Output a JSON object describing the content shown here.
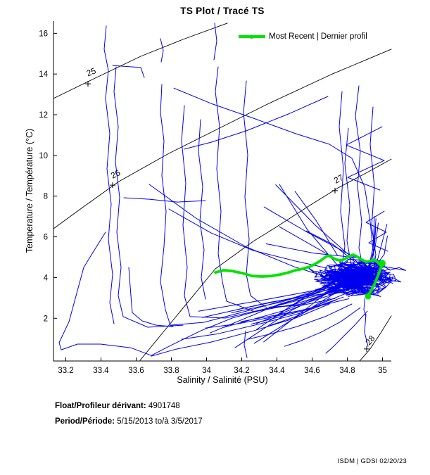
{
  "title": "TS Plot / Tracé TS",
  "legend": {
    "label": "Most Recent | Dernier profil"
  },
  "footer": {
    "float_label": "Float/Profileur dérivant:",
    "float_value": "4901748",
    "period_label": "Period/Période:",
    "period_value": "5/15/2013  to/à  3/5/2017"
  },
  "credit": "ISDM | GDSI 02/20/23",
  "chart_data": {
    "type": "line",
    "title": "TS Plot / Tracé TS",
    "xlabel": "Salinity / Salinité (PSU)",
    "ylabel": "Temperature / Température (°C)",
    "xlim": [
      33.13,
      35.05
    ],
    "ylim": [
      -0.1,
      16.6
    ],
    "xtick_values": [
      33.2,
      33.4,
      33.6,
      33.8,
      34,
      34.2,
      34.4,
      34.6,
      34.8,
      35
    ],
    "xtick_labels": [
      "33.2",
      "33.4",
      "33.6",
      "33.8",
      "34",
      "34.2",
      "34.4",
      "34.6",
      "34.8",
      "35"
    ],
    "ytick_values": [
      2,
      4,
      6,
      8,
      10,
      12,
      14,
      16
    ],
    "ytick_labels": [
      "2",
      "4",
      "6",
      "8",
      "10",
      "12",
      "14",
      "16"
    ],
    "grid": false,
    "legend_position": "top-right",
    "colors": {
      "profiles": "#0000EE",
      "most_recent": "#00E400",
      "contours": "#000000",
      "axis": "#000000"
    },
    "density_contours": [
      {
        "label": "25",
        "rotation": -22,
        "label_pos": [
          33.35,
          13.97
        ],
        "plus": [
          33.326,
          13.52
        ],
        "points": [
          [
            33.13,
            12.8
          ],
          [
            33.358,
            13.76
          ],
          [
            33.626,
            14.87
          ],
          [
            33.866,
            15.7
          ],
          [
            34.118,
            16.5
          ]
        ]
      },
      {
        "label": "26",
        "rotation": -27,
        "label_pos": [
          33.49,
          8.96
        ],
        "plus": [
          33.466,
          8.54
        ],
        "points": [
          [
            33.13,
            6.4
          ],
          [
            33.306,
            7.51
          ],
          [
            33.502,
            8.72
          ],
          [
            33.786,
            10.1
          ],
          [
            34.066,
            11.31
          ],
          [
            34.346,
            12.52
          ],
          [
            34.706,
            13.97
          ],
          [
            35.05,
            15.22
          ]
        ]
      },
      {
        "label": "27",
        "rotation": -28,
        "label_pos": [
          34.758,
          8.72
        ],
        "plus": [
          34.73,
          8.27
        ],
        "points": [
          [
            33.622,
            -0.07
          ],
          [
            33.786,
            1.66
          ],
          [
            34.05,
            4.43
          ],
          [
            34.266,
            5.78
          ],
          [
            34.394,
            6.47
          ],
          [
            34.586,
            7.54
          ],
          [
            34.746,
            8.4
          ],
          [
            34.906,
            9.13
          ],
          [
            35.05,
            9.82
          ]
        ]
      },
      {
        "label": "28",
        "rotation": -50,
        "label_pos": [
          34.942,
          0.83
        ],
        "plus": [
          34.91,
          0.49
        ],
        "points": [
          [
            34.87,
            -0.1
          ],
          [
            34.926,
            0.45
          ],
          [
            34.99,
            1.28
          ],
          [
            35.05,
            2.12
          ]
        ]
      }
    ],
    "most_recent_profile": [
      [
        34.05,
        4.25
      ],
      [
        34.098,
        4.36
      ],
      [
        34.146,
        4.32
      ],
      [
        34.202,
        4.22
      ],
      [
        34.258,
        4.08
      ],
      [
        34.314,
        4.05
      ],
      [
        34.37,
        4.08
      ],
      [
        34.418,
        4.15
      ],
      [
        34.466,
        4.25
      ],
      [
        34.506,
        4.36
      ],
      [
        34.546,
        4.43
      ],
      [
        34.586,
        4.53
      ],
      [
        34.618,
        4.67
      ],
      [
        34.65,
        4.84
      ],
      [
        34.678,
        5.02
      ],
      [
        34.694,
        5.08
      ],
      [
        34.714,
        4.98
      ],
      [
        34.738,
        4.88
      ],
      [
        34.762,
        4.84
      ],
      [
        34.786,
        4.91
      ],
      [
        34.81,
        5.05
      ],
      [
        34.834,
        5.12
      ],
      [
        34.858,
        5.02
      ],
      [
        34.882,
        4.88
      ],
      [
        34.906,
        4.77
      ],
      [
        34.93,
        4.81
      ],
      [
        34.95,
        4.88
      ],
      [
        34.97,
        4.77
      ],
      [
        34.986,
        4.63
      ],
      [
        34.998,
        4.7
      ],
      [
        34.99,
        4.46
      ],
      [
        34.978,
        4.18
      ],
      [
        34.966,
        3.91
      ],
      [
        34.954,
        3.67
      ],
      [
        34.938,
        3.39
      ],
      [
        34.922,
        3.18
      ],
      [
        34.918,
        3.08
      ]
    ],
    "most_recent_markers": [
      [
        34.998,
        4.7,
        5
      ],
      [
        34.918,
        3.08,
        4.5
      ]
    ],
    "profiles": [
      [
        [
          33.43,
          16.36
        ],
        [
          33.418,
          15.22
        ],
        [
          33.442,
          14.18
        ],
        [
          33.426,
          12.8
        ],
        [
          33.45,
          11.07
        ],
        [
          33.434,
          9.34
        ],
        [
          33.458,
          7.61
        ],
        [
          33.442,
          5.88
        ],
        [
          33.466,
          4.15
        ],
        [
          33.45,
          2.77
        ],
        [
          33.474,
          1.73
        ]
      ],
      [
        [
          33.486,
          14.35
        ],
        [
          33.474,
          13.14
        ],
        [
          33.498,
          11.41
        ],
        [
          33.482,
          9.68
        ],
        [
          33.506,
          7.95
        ],
        [
          33.49,
          6.23
        ],
        [
          33.514,
          4.5
        ],
        [
          33.498,
          3.11
        ],
        [
          33.526,
          2.08
        ],
        [
          33.666,
          1.56
        ],
        [
          33.866,
          1.66
        ]
      ],
      [
        [
          33.426,
          6.23
        ],
        [
          33.358,
          5.29
        ],
        [
          33.302,
          4.5
        ],
        [
          33.218,
          1.83
        ],
        [
          33.162,
          0.8
        ],
        [
          33.174,
          0.45
        ],
        [
          33.266,
          0.73
        ],
        [
          33.398,
          0.73
        ],
        [
          33.57,
          0.55
        ],
        [
          33.686,
          0.17
        ],
        [
          33.786,
          0.62
        ],
        [
          33.966,
          1.38
        ],
        [
          34.146,
          2.01
        ],
        [
          34.346,
          2.49
        ],
        [
          34.546,
          2.94
        ],
        [
          34.706,
          3.28
        ]
      ],
      [
        [
          33.746,
          13.49
        ],
        [
          33.738,
          12.1
        ],
        [
          33.758,
          10.72
        ],
        [
          33.746,
          9.0
        ],
        [
          33.77,
          7.26
        ],
        [
          33.758,
          5.53
        ],
        [
          33.738,
          3.8
        ],
        [
          33.766,
          2.42
        ],
        [
          33.794,
          1.66
        ],
        [
          33.986,
          1.8
        ],
        [
          34.226,
          2.35
        ],
        [
          34.506,
          3.04
        ],
        [
          34.698,
          3.6
        ]
      ],
      [
        [
          33.874,
          12.45
        ],
        [
          33.858,
          10.72
        ],
        [
          33.882,
          8.65
        ],
        [
          33.866,
          6.57
        ],
        [
          33.89,
          4.5
        ],
        [
          33.874,
          3.11
        ],
        [
          33.906,
          2.08
        ],
        [
          34.106,
          2.01
        ],
        [
          34.346,
          2.49
        ],
        [
          34.586,
          3.11
        ],
        [
          34.754,
          3.6
        ]
      ],
      [
        [
          34.066,
          14.35
        ],
        [
          34.05,
          13.14
        ],
        [
          34.074,
          11.41
        ],
        [
          34.058,
          9.34
        ],
        [
          34.082,
          7.26
        ],
        [
          34.066,
          5.19
        ],
        [
          34.09,
          3.8
        ],
        [
          34.114,
          2.84
        ],
        [
          34.274,
          2.32
        ],
        [
          34.506,
          2.7
        ],
        [
          34.726,
          3.32
        ]
      ],
      [
        [
          34.226,
          13.66
        ],
        [
          34.21,
          12.1
        ],
        [
          34.234,
          10.03
        ],
        [
          34.218,
          7.95
        ],
        [
          34.242,
          5.88
        ],
        [
          34.226,
          4.15
        ],
        [
          34.25,
          3.11
        ],
        [
          34.346,
          2.49
        ],
        [
          34.546,
          2.7
        ],
        [
          34.746,
          3.25
        ]
      ],
      [
        [
          33.966,
          11.76
        ],
        [
          33.954,
          10.2
        ],
        [
          33.978,
          8.47
        ],
        [
          33.962,
          6.74
        ],
        [
          33.986,
          5.36
        ],
        [
          33.97,
          3.98
        ],
        [
          33.994,
          2.94
        ]
      ],
      [
        [
          33.738,
          15.74
        ],
        [
          33.754,
          15.15
        ],
        [
          33.742,
          14.59
        ]
      ],
      [
        [
          34.046,
          16.5
        ],
        [
          34.058,
          15.63
        ],
        [
          34.042,
          14.7
        ]
      ],
      [
        [
          33.814,
          13.31
        ],
        [
          34.026,
          12.55
        ],
        [
          34.266,
          11.83
        ],
        [
          34.506,
          11.07
        ],
        [
          34.698,
          10.55
        ],
        [
          34.826,
          9.86
        ],
        [
          34.898,
          8.47
        ],
        [
          34.93,
          6.74
        ],
        [
          34.946,
          5.36
        ]
      ],
      [
        [
          34.69,
          12.9
        ],
        [
          34.466,
          12.04
        ],
        [
          34.226,
          11.21
        ],
        [
          34.026,
          10.65
        ],
        [
          33.874,
          10.31
        ]
      ],
      [
        [
          34.866,
          13.42
        ],
        [
          34.846,
          11.93
        ],
        [
          34.874,
          10.2
        ],
        [
          34.858,
          8.47
        ],
        [
          34.882,
          6.74
        ],
        [
          34.866,
          5.46
        ],
        [
          34.89,
          4.43
        ]
      ],
      [
        [
          34.946,
          12.38
        ],
        [
          34.93,
          10.55
        ],
        [
          34.954,
          8.47
        ],
        [
          34.938,
          6.5
        ],
        [
          34.962,
          5.12
        ],
        [
          34.946,
          4.29
        ]
      ],
      [
        [
          34.806,
          11.34
        ],
        [
          34.786,
          9.61
        ],
        [
          34.814,
          7.54
        ],
        [
          34.798,
          5.81
        ],
        [
          34.822,
          4.63
        ]
      ],
      [
        [
          34.77,
          13.14
        ],
        [
          34.754,
          11.41
        ],
        [
          34.778,
          9.34
        ],
        [
          34.762,
          7.26
        ],
        [
          34.786,
          5.53
        ],
        [
          34.77,
          4.56
        ]
      ],
      [
        [
          34.998,
          11.41
        ],
        [
          34.794,
          10.51
        ],
        [
          35.01,
          9.75
        ],
        [
          34.802,
          8.92
        ],
        [
          34.986,
          8.3
        ]
      ],
      [
        [
          35.01,
          7.26
        ],
        [
          34.906,
          6.71
        ],
        [
          35.022,
          6.23
        ],
        [
          34.922,
          5.71
        ],
        [
          35.03,
          5.29
        ]
      ],
      [
        [
          34.698,
          2.7
        ],
        [
          34.506,
          2.01
        ],
        [
          34.266,
          1.38
        ],
        [
          34.026,
          0.83
        ],
        [
          33.826,
          0.48
        ],
        [
          33.686,
          0.14
        ]
      ],
      [
        [
          34.738,
          2.9
        ],
        [
          34.546,
          2.28
        ],
        [
          34.306,
          1.73
        ],
        [
          34.066,
          1.24
        ],
        [
          33.858,
          0.97
        ]
      ],
      [
        [
          34.778,
          3.04
        ],
        [
          34.606,
          2.52
        ],
        [
          34.386,
          2.08
        ],
        [
          34.178,
          1.73
        ],
        [
          33.994,
          1.52
        ]
      ],
      [
        [
          34.826,
          2.7
        ],
        [
          34.674,
          2.08
        ],
        [
          34.514,
          1.59
        ],
        [
          34.354,
          1.21
        ],
        [
          34.234,
          0.97
        ]
      ],
      [
        [
          34.874,
          2.52
        ],
        [
          34.762,
          1.83
        ],
        [
          34.65,
          1.31
        ],
        [
          34.538,
          0.9
        ],
        [
          34.442,
          0.62
        ]
      ],
      [
        [
          34.914,
          2.35
        ],
        [
          34.842,
          1.66
        ],
        [
          34.77,
          1.04
        ],
        [
          34.714,
          0.55
        ],
        [
          34.678,
          0.28
        ]
      ],
      [
        [
          34.906,
          2.21
        ],
        [
          34.898,
          1.31
        ],
        [
          34.918,
          0.62
        ]
      ],
      [
        [
          34.222,
          1.38
        ],
        [
          34.214,
          0.69
        ],
        [
          34.23,
          0.07
        ]
      ],
      [
        [
          33.53,
          7.92
        ],
        [
          33.674,
          7.85
        ],
        [
          33.834,
          7.71
        ],
        [
          33.994,
          7.78
        ]
      ],
      [
        [
          33.786,
          7.37
        ],
        [
          34.026,
          6.19
        ],
        [
          34.266,
          5.33
        ],
        [
          34.506,
          4.81
        ],
        [
          34.686,
          4.46
        ]
      ],
      [
        [
          33.674,
          8.58
        ],
        [
          33.946,
          6.88
        ],
        [
          34.226,
          5.5
        ],
        [
          34.498,
          4.53
        ],
        [
          34.666,
          4.08
        ]
      ],
      [
        [
          33.558,
          4.5
        ],
        [
          33.57,
          3.11
        ],
        [
          33.578,
          2.28
        ],
        [
          33.634,
          1.87
        ],
        [
          33.714,
          1.66
        ],
        [
          33.81,
          1.59
        ]
      ],
      [
        [
          33.466,
          14.42
        ],
        [
          33.626,
          14.32
        ],
        [
          33.646,
          13.83
        ]
      ],
      [
        [
          34.99,
          4.43
        ],
        [
          35.03,
          4.15
        ],
        [
          34.99,
          3.87
        ],
        [
          35.02,
          3.53
        ],
        [
          34.97,
          3.2
        ]
      ],
      [
        [
          34.9,
          2.97
        ],
        [
          34.894,
          2.42
        ],
        [
          34.906,
          2.08
        ]
      ]
    ],
    "cluster": {
      "seed": 7,
      "strokes": 130,
      "cx": 34.845,
      "cy": 4.0,
      "sx": 0.155,
      "sy": 0.95
    },
    "rays": [
      {
        "seed": 11,
        "count": 16,
        "start_s": [
          34.68,
          34.88
        ],
        "start_t": [
          2.9,
          4.2
        ],
        "end_s": [
          33.95,
          34.5
        ],
        "end_t": [
          0.5,
          2.6
        ]
      },
      {
        "seed": 5,
        "count": 7,
        "start_s": [
          34.7,
          34.9
        ],
        "start_t": [
          4.4,
          5.2
        ],
        "end_s": [
          34.25,
          34.6
        ],
        "end_t": [
          5.6,
          8.6
        ]
      },
      {
        "seed": 9,
        "count": 6,
        "start_s": [
          34.9,
          35.0
        ],
        "start_t": [
          3.4,
          4.6
        ],
        "end_s": [
          34.95,
          35.04
        ],
        "end_t": [
          5.0,
          7.3
        ]
      }
    ]
  }
}
